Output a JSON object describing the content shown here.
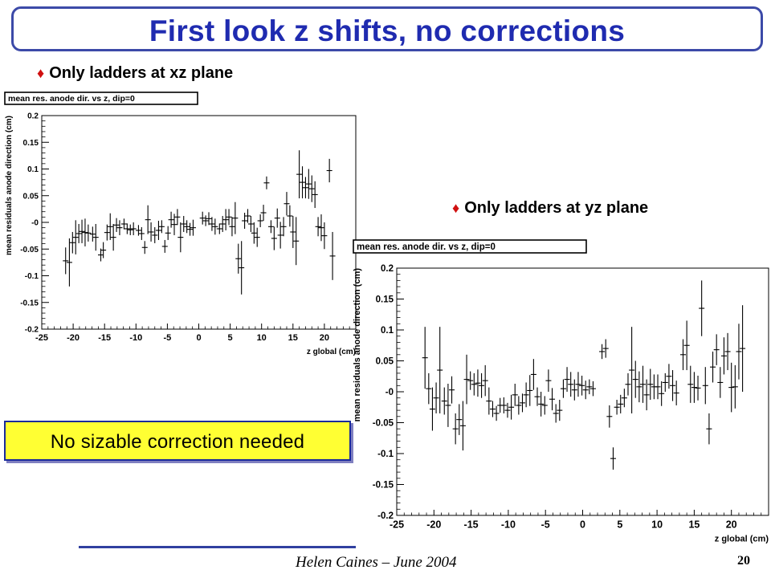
{
  "slide": {
    "title": "First look z shifts, no corrections",
    "bullet_xz": "Only ladders at xz plane",
    "bullet_yz": "Only ladders at yz plane",
    "bullet_symbol": "♦",
    "callout": "No sizable correction needed",
    "footer": "Helen Caines – June 2004",
    "page_number": "20"
  },
  "chart_data": [
    {
      "type": "scatter",
      "title": "mean res. anode dir. vs z, dip=0",
      "xlabel": "z global (cm)",
      "ylabel": "mean residuals anode direction (cm)",
      "xlim": [
        -25,
        25
      ],
      "ylim": [
        -0.2,
        0.2
      ],
      "xticks": [
        -25,
        -20,
        -15,
        -10,
        -5,
        0,
        5,
        10,
        15,
        20
      ],
      "xtick_labels": [
        "-25",
        "-20",
        "-15",
        "-10",
        "-5",
        "0",
        "5",
        "10",
        "15",
        "20"
      ],
      "yticks": [
        -0.2,
        -0.15,
        -0.1,
        -0.05,
        0,
        0.05,
        0.1,
        0.15,
        0.2
      ],
      "ytick_labels": [
        "-0.2",
        "-0.15",
        "-0.1",
        "-0.05",
        "-0",
        "0.05",
        "0.1",
        "0.15",
        "0.2"
      ],
      "marker_color": "#000000",
      "points": [
        {
          "x": -21.2,
          "y": -0.072,
          "err": 0.025
        },
        {
          "x": -20.6,
          "y": -0.075,
          "err": 0.045
        },
        {
          "x": -20.1,
          "y": -0.038,
          "err": 0.02
        },
        {
          "x": -19.6,
          "y": -0.028,
          "err": 0.032
        },
        {
          "x": -19.1,
          "y": -0.021,
          "err": 0.018
        },
        {
          "x": -18.6,
          "y": -0.017,
          "err": 0.022
        },
        {
          "x": -18.1,
          "y": -0.019,
          "err": 0.026
        },
        {
          "x": -17.6,
          "y": -0.02,
          "err": 0.016
        },
        {
          "x": -16.9,
          "y": -0.022,
          "err": 0.014
        },
        {
          "x": -16.4,
          "y": -0.028,
          "err": 0.025
        },
        {
          "x": -15.6,
          "y": -0.061,
          "err": 0.012
        },
        {
          "x": -15.2,
          "y": -0.052,
          "err": 0.015
        },
        {
          "x": -14.6,
          "y": -0.019,
          "err": 0.015
        },
        {
          "x": -14.1,
          "y": -0.008,
          "err": 0.025
        },
        {
          "x": -13.6,
          "y": -0.028,
          "err": 0.025
        },
        {
          "x": -13.1,
          "y": -0.005,
          "err": 0.013
        },
        {
          "x": -12.6,
          "y": -0.01,
          "err": 0.014
        },
        {
          "x": -11.9,
          "y": -0.003,
          "err": 0.01
        },
        {
          "x": -11.4,
          "y": -0.012,
          "err": 0.01
        },
        {
          "x": -10.9,
          "y": -0.014,
          "err": 0.01
        },
        {
          "x": -10.4,
          "y": -0.012,
          "err": 0.012
        },
        {
          "x": -9.6,
          "y": -0.015,
          "err": 0.01
        },
        {
          "x": -9.1,
          "y": -0.021,
          "err": 0.012
        },
        {
          "x": -8.6,
          "y": -0.047,
          "err": 0.012
        },
        {
          "x": -8.1,
          "y": 0.005,
          "err": 0.027
        },
        {
          "x": -7.6,
          "y": -0.018,
          "err": 0.018
        },
        {
          "x": -7.0,
          "y": -0.024,
          "err": 0.015
        },
        {
          "x": -6.4,
          "y": -0.015,
          "err": 0.018
        },
        {
          "x": -5.9,
          "y": -0.008,
          "err": 0.012
        },
        {
          "x": -5.4,
          "y": -0.045,
          "err": 0.012
        },
        {
          "x": -4.9,
          "y": -0.02,
          "err": 0.013
        },
        {
          "x": -4.4,
          "y": 0.005,
          "err": 0.015
        },
        {
          "x": -3.9,
          "y": -0.004,
          "err": 0.02
        },
        {
          "x": -3.4,
          "y": 0.01,
          "err": 0.015
        },
        {
          "x": -2.9,
          "y": -0.028,
          "err": 0.028
        },
        {
          "x": -2.4,
          "y": -0.003,
          "err": 0.015
        },
        {
          "x": -1.9,
          "y": -0.008,
          "err": 0.012
        },
        {
          "x": -1.4,
          "y": -0.013,
          "err": 0.012
        },
        {
          "x": -0.9,
          "y": -0.01,
          "err": 0.015
        },
        {
          "x": 0.6,
          "y": 0.008,
          "err": 0.012
        },
        {
          "x": 1.1,
          "y": 0.003,
          "err": 0.01
        },
        {
          "x": 1.6,
          "y": 0.007,
          "err": 0.012
        },
        {
          "x": 2.1,
          "y": -0.003,
          "err": 0.013
        },
        {
          "x": 2.6,
          "y": -0.008,
          "err": 0.015
        },
        {
          "x": 3.3,
          "y": -0.012,
          "err": 0.01
        },
        {
          "x": 3.8,
          "y": -0.003,
          "err": 0.015
        },
        {
          "x": 4.3,
          "y": 0.005,
          "err": 0.02
        },
        {
          "x": 4.8,
          "y": 0.01,
          "err": 0.015
        },
        {
          "x": 5.3,
          "y": -0.008,
          "err": 0.018
        },
        {
          "x": 5.8,
          "y": 0.008,
          "err": 0.03
        },
        {
          "x": 6.3,
          "y": -0.068,
          "err": 0.028
        },
        {
          "x": 6.8,
          "y": -0.085,
          "err": 0.05
        },
        {
          "x": 7.3,
          "y": 0.003,
          "err": 0.015
        },
        {
          "x": 7.8,
          "y": 0.012,
          "err": 0.013
        },
        {
          "x": 8.3,
          "y": -0.003,
          "err": 0.015
        },
        {
          "x": 8.8,
          "y": -0.02,
          "err": 0.02
        },
        {
          "x": 9.3,
          "y": -0.028,
          "err": 0.018
        },
        {
          "x": 9.8,
          "y": 0.003,
          "err": 0.012
        },
        {
          "x": 10.3,
          "y": 0.018,
          "err": 0.015
        },
        {
          "x": 10.8,
          "y": 0.074,
          "err": 0.012
        },
        {
          "x": 11.5,
          "y": -0.008,
          "err": 0.012
        },
        {
          "x": 12.0,
          "y": -0.03,
          "err": 0.022
        },
        {
          "x": 12.5,
          "y": 0.008,
          "err": 0.018
        },
        {
          "x": 13.0,
          "y": -0.024,
          "err": 0.025
        },
        {
          "x": 13.5,
          "y": -0.008,
          "err": 0.018
        },
        {
          "x": 14.0,
          "y": 0.035,
          "err": 0.022
        },
        {
          "x": 14.5,
          "y": 0.012,
          "err": 0.02
        },
        {
          "x": 15.0,
          "y": -0.018,
          "err": 0.03
        },
        {
          "x": 15.5,
          "y": -0.035,
          "err": 0.045
        },
        {
          "x": 16.0,
          "y": 0.09,
          "err": 0.045
        },
        {
          "x": 16.5,
          "y": 0.075,
          "err": 0.03
        },
        {
          "x": 17.0,
          "y": 0.065,
          "err": 0.02
        },
        {
          "x": 17.5,
          "y": 0.072,
          "err": 0.028
        },
        {
          "x": 18.0,
          "y": 0.063,
          "err": 0.025
        },
        {
          "x": 18.5,
          "y": 0.052,
          "err": 0.025
        },
        {
          "x": 19.0,
          "y": -0.008,
          "err": 0.018
        },
        {
          "x": 19.5,
          "y": -0.01,
          "err": 0.025
        },
        {
          "x": 20.0,
          "y": -0.025,
          "err": 0.025
        },
        {
          "x": 20.8,
          "y": 0.097,
          "err": 0.022
        },
        {
          "x": 21.3,
          "y": -0.063,
          "err": 0.045
        }
      ]
    },
    {
      "type": "scatter",
      "title": "mean res. anode dir. vs z, dip=0",
      "xlabel": "z global (cm)",
      "ylabel": "mean residuals anode direction (cm)",
      "xlim": [
        -25,
        25
      ],
      "ylim": [
        -0.2,
        0.2
      ],
      "xticks": [
        -25,
        -20,
        -15,
        -10,
        -5,
        0,
        5,
        10,
        15,
        20
      ],
      "xtick_labels": [
        "-25",
        "-20",
        "-15",
        "-10",
        "-5",
        "0",
        "5",
        "10",
        "15",
        "20"
      ],
      "yticks": [
        -0.2,
        -0.15,
        -0.1,
        -0.05,
        0,
        0.05,
        0.1,
        0.15,
        0.2
      ],
      "ytick_labels": [
        "-0.2",
        "-0.15",
        "-0.1",
        "-0.05",
        "-0",
        "0.05",
        "0.1",
        "0.15",
        "0.2"
      ],
      "marker_color": "#000000",
      "points": [
        {
          "x": -21.2,
          "y": 0.055,
          "err": 0.05
        },
        {
          "x": -20.7,
          "y": 0.005,
          "err": 0.025
        },
        {
          "x": -20.2,
          "y": -0.028,
          "err": 0.035
        },
        {
          "x": -19.7,
          "y": -0.01,
          "err": 0.025
        },
        {
          "x": -19.2,
          "y": 0.035,
          "err": 0.07
        },
        {
          "x": -18.6,
          "y": -0.015,
          "err": 0.022
        },
        {
          "x": -18.1,
          "y": -0.022,
          "err": 0.035
        },
        {
          "x": -17.6,
          "y": 0.003,
          "err": 0.022
        },
        {
          "x": -17.1,
          "y": -0.06,
          "err": 0.025
        },
        {
          "x": -16.6,
          "y": -0.045,
          "err": 0.025
        },
        {
          "x": -16.1,
          "y": -0.055,
          "err": 0.04
        },
        {
          "x": -15.6,
          "y": 0.02,
          "err": 0.04
        },
        {
          "x": -15.1,
          "y": 0.018,
          "err": 0.015
        },
        {
          "x": -14.6,
          "y": 0.012,
          "err": 0.018
        },
        {
          "x": -14.1,
          "y": 0.014,
          "err": 0.022
        },
        {
          "x": -13.6,
          "y": 0.01,
          "err": 0.02
        },
        {
          "x": -13.1,
          "y": 0.018,
          "err": 0.025
        },
        {
          "x": -12.6,
          "y": -0.015,
          "err": 0.022
        },
        {
          "x": -12.1,
          "y": -0.028,
          "err": 0.013
        },
        {
          "x": -11.6,
          "y": -0.035,
          "err": 0.012
        },
        {
          "x": -11.1,
          "y": -0.022,
          "err": 0.012
        },
        {
          "x": -10.6,
          "y": -0.022,
          "err": 0.013
        },
        {
          "x": -10.1,
          "y": -0.03,
          "err": 0.012
        },
        {
          "x": -9.6,
          "y": -0.025,
          "err": 0.02
        },
        {
          "x": -9.1,
          "y": -0.005,
          "err": 0.018
        },
        {
          "x": -8.6,
          "y": -0.022,
          "err": 0.015
        },
        {
          "x": -8.1,
          "y": -0.018,
          "err": 0.015
        },
        {
          "x": -7.6,
          "y": -0.005,
          "err": 0.02
        },
        {
          "x": -7.1,
          "y": 0.002,
          "err": 0.025
        },
        {
          "x": -6.6,
          "y": 0.028,
          "err": 0.025
        },
        {
          "x": -6.1,
          "y": -0.008,
          "err": 0.015
        },
        {
          "x": -5.6,
          "y": -0.02,
          "err": 0.02
        },
        {
          "x": -5.1,
          "y": -0.022,
          "err": 0.015
        },
        {
          "x": -4.6,
          "y": 0.018,
          "err": 0.018
        },
        {
          "x": -4.1,
          "y": -0.012,
          "err": 0.018
        },
        {
          "x": -3.6,
          "y": -0.035,
          "err": 0.015
        },
        {
          "x": -3.1,
          "y": -0.03,
          "err": 0.017
        },
        {
          "x": -2.6,
          "y": 0.005,
          "err": 0.015
        },
        {
          "x": -2.1,
          "y": 0.02,
          "err": 0.02
        },
        {
          "x": -1.6,
          "y": 0.012,
          "err": 0.02
        },
        {
          "x": -1.1,
          "y": 0.003,
          "err": 0.017
        },
        {
          "x": -0.6,
          "y": 0.012,
          "err": 0.02
        },
        {
          "x": -0.1,
          "y": 0.01,
          "err": 0.016
        },
        {
          "x": 0.4,
          "y": 0.003,
          "err": 0.015
        },
        {
          "x": 0.9,
          "y": 0.008,
          "err": 0.012
        },
        {
          "x": 1.4,
          "y": 0.005,
          "err": 0.012
        },
        {
          "x": 2.6,
          "y": 0.065,
          "err": 0.012
        },
        {
          "x": 3.1,
          "y": 0.07,
          "err": 0.015
        },
        {
          "x": 3.6,
          "y": -0.04,
          "err": 0.018
        },
        {
          "x": 4.1,
          "y": -0.108,
          "err": 0.018
        },
        {
          "x": 4.6,
          "y": -0.025,
          "err": 0.012
        },
        {
          "x": 5.1,
          "y": -0.02,
          "err": 0.015
        },
        {
          "x": 5.6,
          "y": -0.01,
          "err": 0.015
        },
        {
          "x": 6.1,
          "y": 0.012,
          "err": 0.018
        },
        {
          "x": 6.6,
          "y": 0.035,
          "err": 0.07
        },
        {
          "x": 7.1,
          "y": 0.02,
          "err": 0.03
        },
        {
          "x": 7.6,
          "y": 0.008,
          "err": 0.025
        },
        {
          "x": 8.1,
          "y": 0.012,
          "err": 0.03
        },
        {
          "x": 8.6,
          "y": -0.005,
          "err": 0.025
        },
        {
          "x": 9.1,
          "y": 0.012,
          "err": 0.025
        },
        {
          "x": 9.6,
          "y": 0.008,
          "err": 0.02
        },
        {
          "x": 10.1,
          "y": 0.008,
          "err": 0.02
        },
        {
          "x": 10.6,
          "y": -0.003,
          "err": 0.02
        },
        {
          "x": 11.1,
          "y": 0.015,
          "err": 0.015
        },
        {
          "x": 11.6,
          "y": 0.025,
          "err": 0.02
        },
        {
          "x": 12.1,
          "y": 0.01,
          "err": 0.025
        },
        {
          "x": 12.6,
          "y": -0.002,
          "err": 0.02
        },
        {
          "x": 13.5,
          "y": 0.06,
          "err": 0.025
        },
        {
          "x": 14.0,
          "y": 0.075,
          "err": 0.04
        },
        {
          "x": 14.5,
          "y": 0.012,
          "err": 0.03
        },
        {
          "x": 15.0,
          "y": 0.007,
          "err": 0.025
        },
        {
          "x": 15.5,
          "y": 0.006,
          "err": 0.02
        },
        {
          "x": 16.0,
          "y": 0.135,
          "err": 0.045
        },
        {
          "x": 16.5,
          "y": 0.01,
          "err": 0.03
        },
        {
          "x": 17.0,
          "y": -0.06,
          "err": 0.025
        },
        {
          "x": 17.5,
          "y": 0.04,
          "err": 0.025
        },
        {
          "x": 18.0,
          "y": 0.068,
          "err": 0.025
        },
        {
          "x": 18.5,
          "y": 0.015,
          "err": 0.025
        },
        {
          "x": 19.0,
          "y": 0.058,
          "err": 0.03
        },
        {
          "x": 19.5,
          "y": 0.065,
          "err": 0.03
        },
        {
          "x": 20.0,
          "y": 0.007,
          "err": 0.04
        },
        {
          "x": 20.5,
          "y": 0.008,
          "err": 0.035
        },
        {
          "x": 21.0,
          "y": 0.065,
          "err": 0.045
        },
        {
          "x": 21.5,
          "y": 0.07,
          "err": 0.07
        }
      ]
    }
  ]
}
